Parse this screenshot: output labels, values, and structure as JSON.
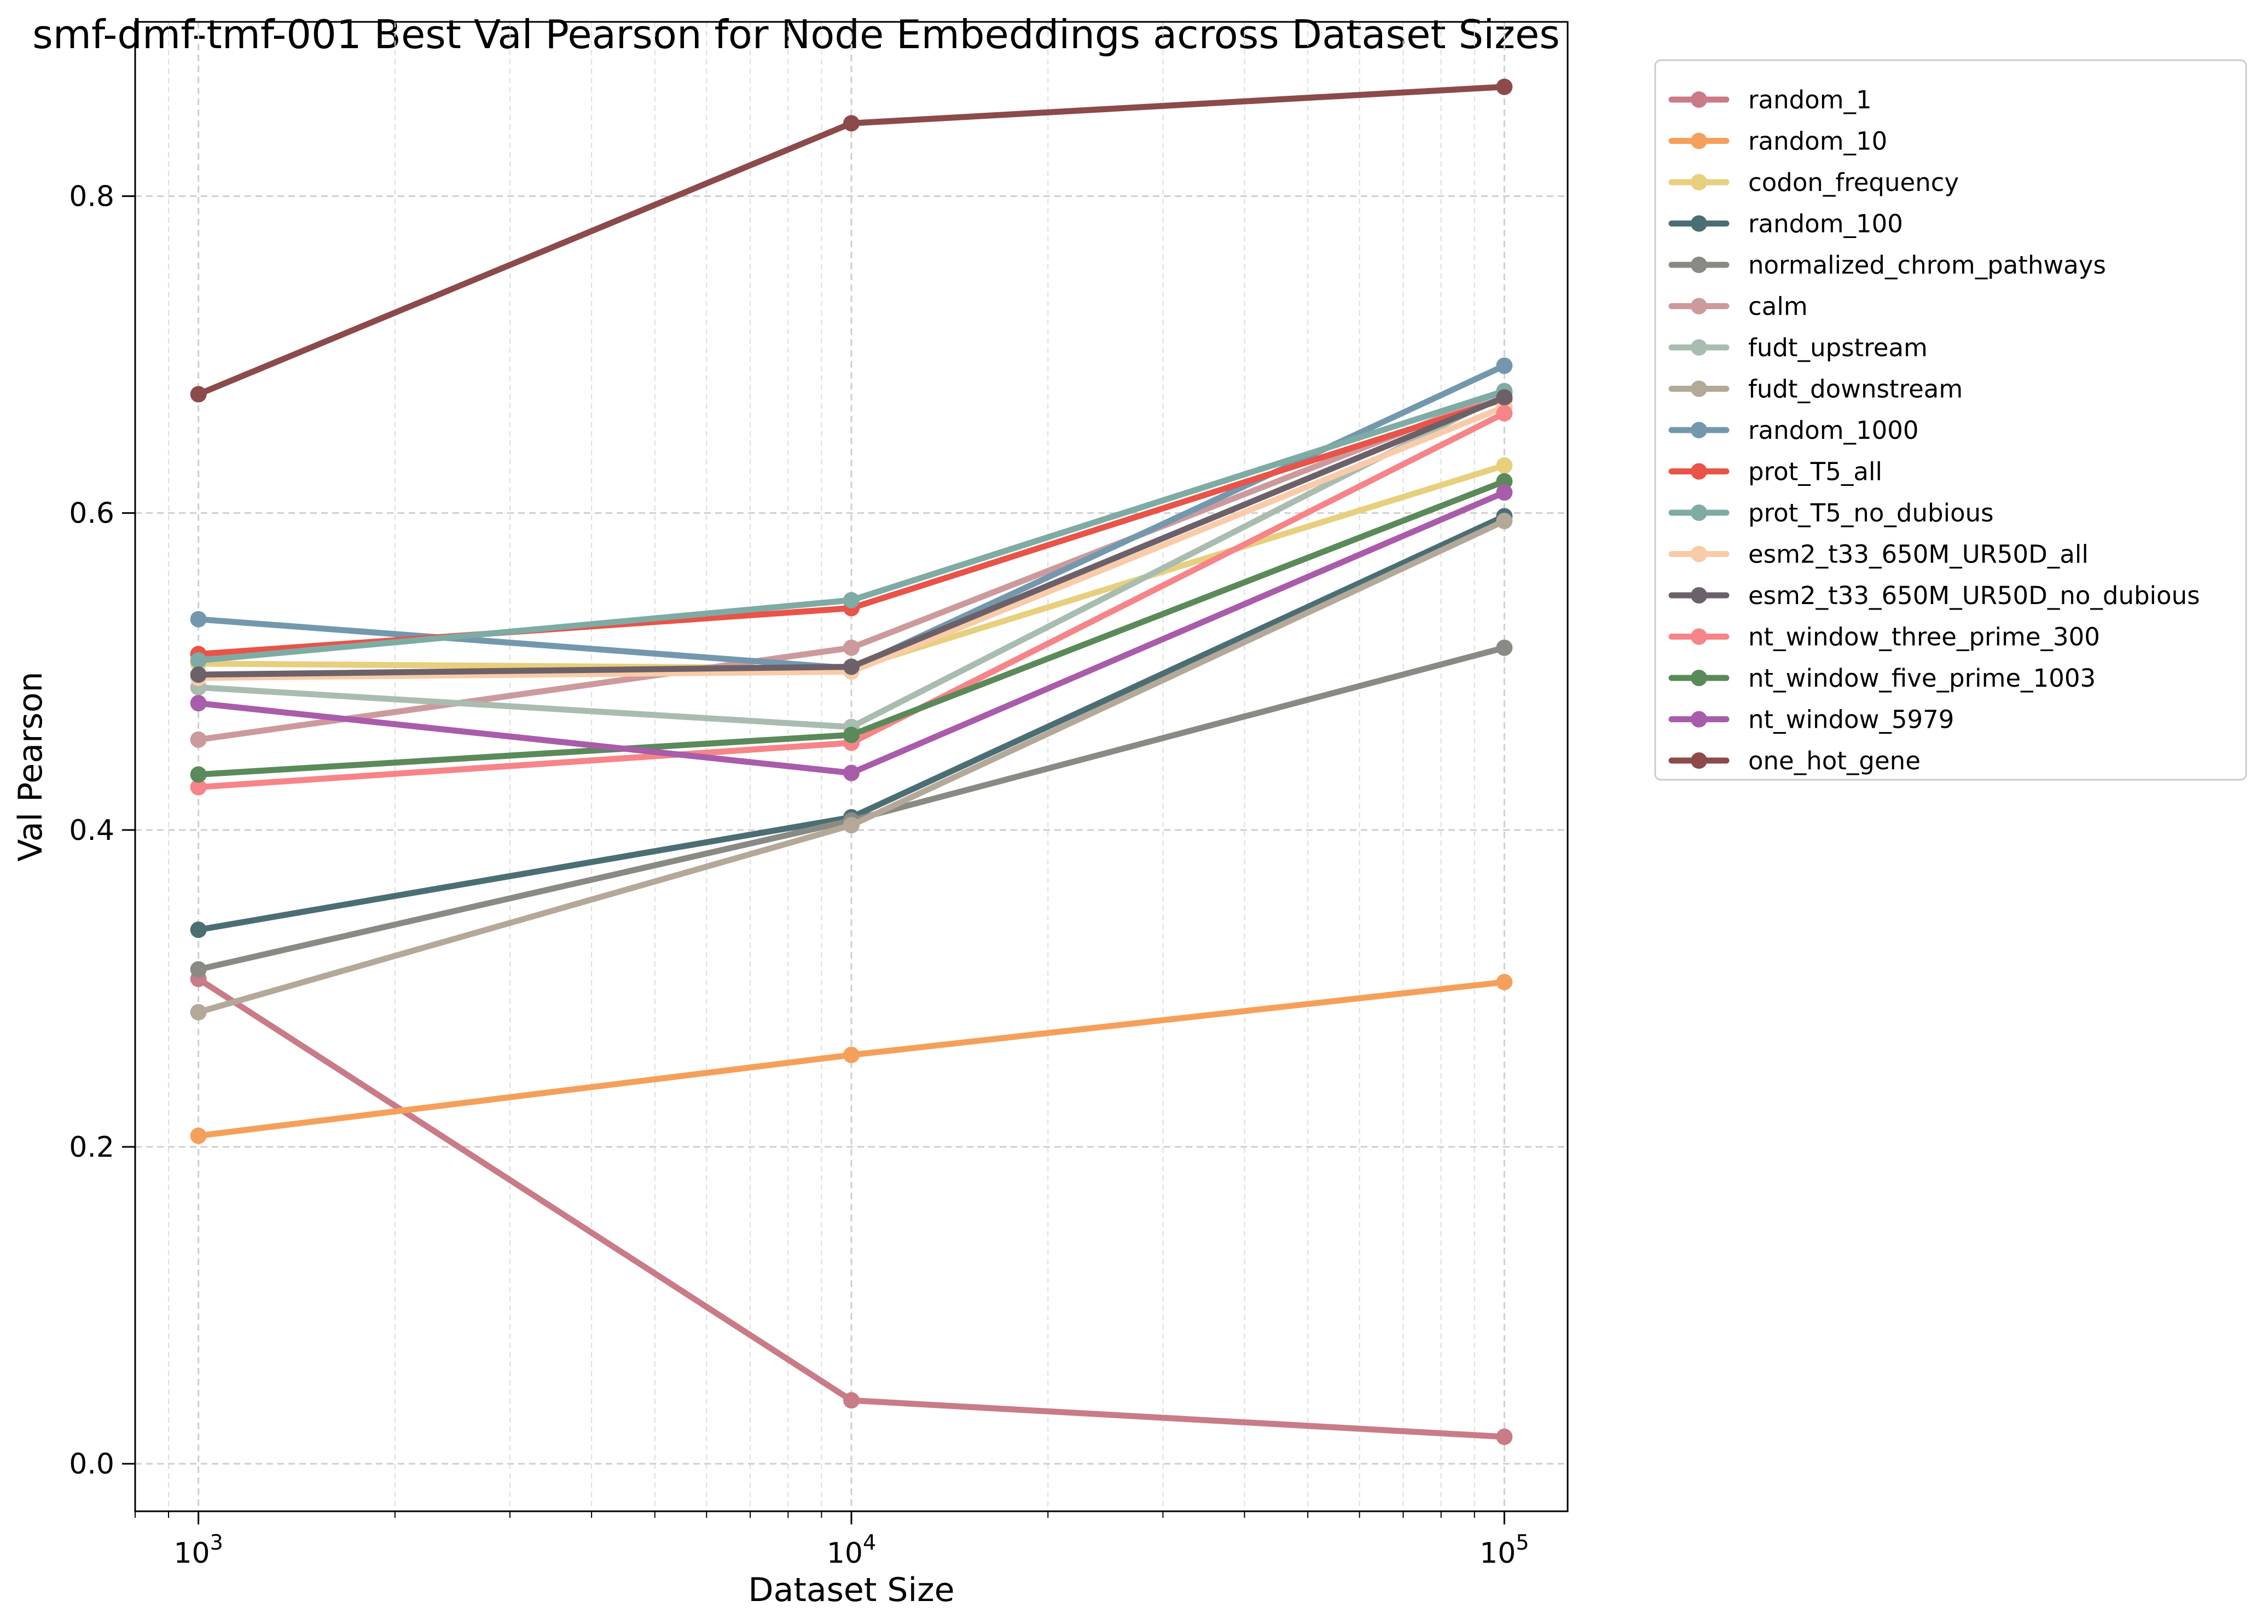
{
  "chart_data": {
    "type": "line",
    "title": "smf-dmf-tmf-001 Best Val Pearson for Node Embeddings across Dataset Sizes",
    "xlabel": "Dataset Size",
    "ylabel": "Val Pearson",
    "xscale": "log",
    "x": [
      1000,
      10000,
      100000
    ],
    "xticks": [
      {
        "value": 1000,
        "base": "10",
        "exp": "3"
      },
      {
        "value": 10000,
        "base": "10",
        "exp": "4"
      },
      {
        "value": 100000,
        "base": "10",
        "exp": "5"
      }
    ],
    "xlim": [
      800,
      125000
    ],
    "ylim": [
      -0.03,
      0.91
    ],
    "yticks": [
      {
        "value": 0.0,
        "label": "0.0"
      },
      {
        "value": 0.2,
        "label": "0.2"
      },
      {
        "value": 0.4,
        "label": "0.4"
      },
      {
        "value": 0.6,
        "label": "0.6"
      },
      {
        "value": 0.8,
        "label": "0.8"
      }
    ],
    "grid": true,
    "legend_position": "outside-right",
    "series": [
      {
        "name": "random_1",
        "color": "#c97b87",
        "values": [
          0.306,
          0.04,
          0.017
        ]
      },
      {
        "name": "random_10",
        "color": "#f5a05a",
        "values": [
          0.207,
          0.258,
          0.304
        ]
      },
      {
        "name": "codon_frequency",
        "color": "#e7cf7d",
        "values": [
          0.505,
          0.502,
          0.63
        ]
      },
      {
        "name": "random_100",
        "color": "#4a6e74",
        "values": [
          0.337,
          0.408,
          0.598
        ]
      },
      {
        "name": "normalized_chrom_pathways",
        "color": "#8a8a84",
        "values": [
          0.312,
          0.406,
          0.515
        ]
      },
      {
        "name": "calm",
        "color": "#cc9a9c",
        "values": [
          0.457,
          0.515,
          0.676
        ]
      },
      {
        "name": "fudt_upstream",
        "color": "#a9bcb0",
        "values": [
          0.49,
          0.465,
          0.675
        ]
      },
      {
        "name": "fudt_downstream",
        "color": "#b4a898",
        "values": [
          0.285,
          0.403,
          0.595
        ]
      },
      {
        "name": "random_1000",
        "color": "#7398ad",
        "values": [
          0.533,
          0.502,
          0.693
        ]
      },
      {
        "name": "prot_T5_all",
        "color": "#e95348",
        "values": [
          0.511,
          0.54,
          0.672
        ]
      },
      {
        "name": "prot_T5_no_dubious",
        "color": "#7eaba4",
        "values": [
          0.507,
          0.545,
          0.677
        ]
      },
      {
        "name": "esm2_t33_650M_UR50D_all",
        "color": "#f9cba8",
        "values": [
          0.496,
          0.5,
          0.667
        ]
      },
      {
        "name": "esm2_t33_650M_UR50D_no_dubious",
        "color": "#6d6169",
        "values": [
          0.498,
          0.503,
          0.673
        ]
      },
      {
        "name": "nt_window_three_prime_300",
        "color": "#f68488",
        "values": [
          0.427,
          0.455,
          0.663
        ]
      },
      {
        "name": "nt_window_five_prime_1003",
        "color": "#5a8a59",
        "values": [
          0.435,
          0.46,
          0.62
        ]
      },
      {
        "name": "nt_window_5979",
        "color": "#a95ca9",
        "values": [
          0.48,
          0.436,
          0.613
        ]
      },
      {
        "name": "one_hot_gene",
        "color": "#8c4a4a",
        "values": [
          0.675,
          0.846,
          0.869
        ]
      }
    ]
  }
}
